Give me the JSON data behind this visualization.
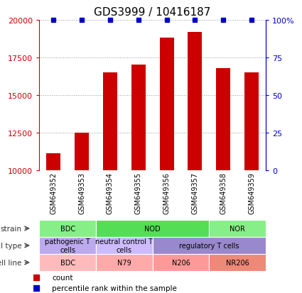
{
  "title": "GDS3999 / 10416187",
  "samples": [
    "GSM649352",
    "GSM649353",
    "GSM649354",
    "GSM649355",
    "GSM649356",
    "GSM649357",
    "GSM649358",
    "GSM649359"
  ],
  "counts": [
    11100,
    12500,
    16500,
    17000,
    18800,
    19200,
    16800,
    16500
  ],
  "percentiles": [
    100,
    100,
    100,
    100,
    100,
    100,
    100,
    100
  ],
  "ylim_left": [
    10000,
    20000
  ],
  "ylim_right": [
    0,
    100
  ],
  "yticks_left": [
    10000,
    12500,
    15000,
    17500,
    20000
  ],
  "yticks_right": [
    0,
    25,
    50,
    75,
    100
  ],
  "bar_color": "#cc0000",
  "dot_color": "#0000cc",
  "annotation_rows": [
    {
      "label": "strain",
      "groups": [
        {
          "text": "BDC",
          "span": [
            0,
            2
          ],
          "color": "#88ee88"
        },
        {
          "text": "NOD",
          "span": [
            2,
            6
          ],
          "color": "#55dd55"
        },
        {
          "text": "NOR",
          "span": [
            6,
            8
          ],
          "color": "#88ee88"
        }
      ]
    },
    {
      "label": "cell type",
      "groups": [
        {
          "text": "pathogenic T\ncells",
          "span": [
            0,
            2
          ],
          "color": "#bbaaee"
        },
        {
          "text": "neutral control T\ncells",
          "span": [
            2,
            4
          ],
          "color": "#ccbbff"
        },
        {
          "text": "regulatory T cells",
          "span": [
            4,
            8
          ],
          "color": "#9988cc"
        }
      ]
    },
    {
      "label": "cell line",
      "groups": [
        {
          "text": "BDC",
          "span": [
            0,
            2
          ],
          "color": "#ffbbbb"
        },
        {
          "text": "N79",
          "span": [
            2,
            4
          ],
          "color": "#ffaaaa"
        },
        {
          "text": "N206",
          "span": [
            4,
            6
          ],
          "color": "#ff9999"
        },
        {
          "text": "NR206",
          "span": [
            6,
            8
          ],
          "color": "#ee8877"
        }
      ]
    }
  ],
  "legend_items": [
    {
      "label": "count",
      "color": "#cc0000"
    },
    {
      "label": "percentile rank within the sample",
      "color": "#0000cc"
    }
  ],
  "tick_color_left": "#cc0000",
  "tick_color_right": "#0000cc",
  "grid_color": "#999999",
  "xtick_bg_color": "#cccccc"
}
